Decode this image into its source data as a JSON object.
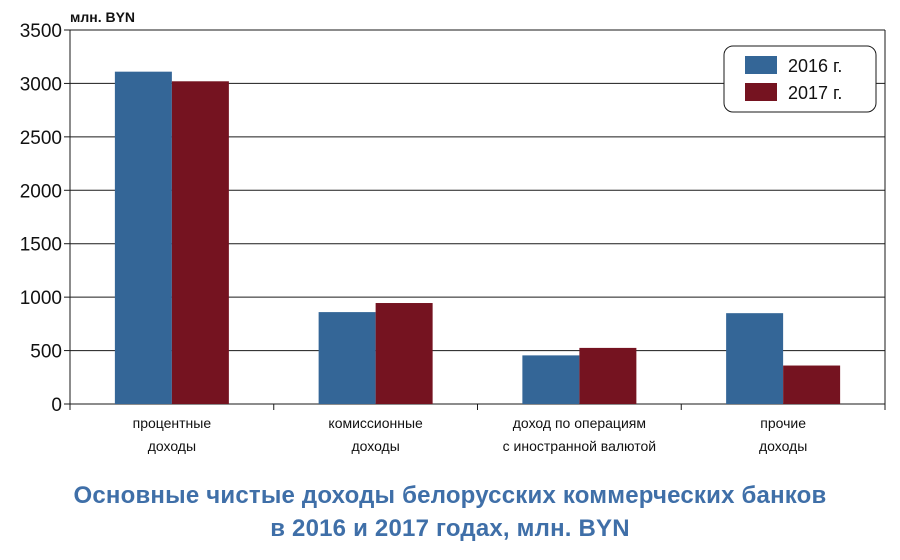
{
  "chart_data": {
    "type": "bar",
    "title_lines": [
      "Основные чистые доходы белорусских коммерческих банков",
      "в 2016 и 2017 годах, млн. BYN"
    ],
    "unit_label": "млн. BYN",
    "categories": [
      [
        "процентные",
        "доходы"
      ],
      [
        "комиссионные",
        "доходы"
      ],
      [
        "доход по операциям",
        "с иностранной валютой"
      ],
      [
        "прочие",
        "доходы"
      ]
    ],
    "series": [
      {
        "name": "2016 г.",
        "color": "#346697",
        "values": [
          3110,
          860,
          455,
          850
        ]
      },
      {
        "name": "2017 г.",
        "color": "#751320",
        "values": [
          3020,
          945,
          525,
          360
        ]
      }
    ],
    "ylim": [
      0,
      3500
    ],
    "yticks": [
      0,
      500,
      1000,
      1500,
      2000,
      2500,
      3000,
      3500
    ],
    "grid": true,
    "legend_position": "top-right"
  }
}
